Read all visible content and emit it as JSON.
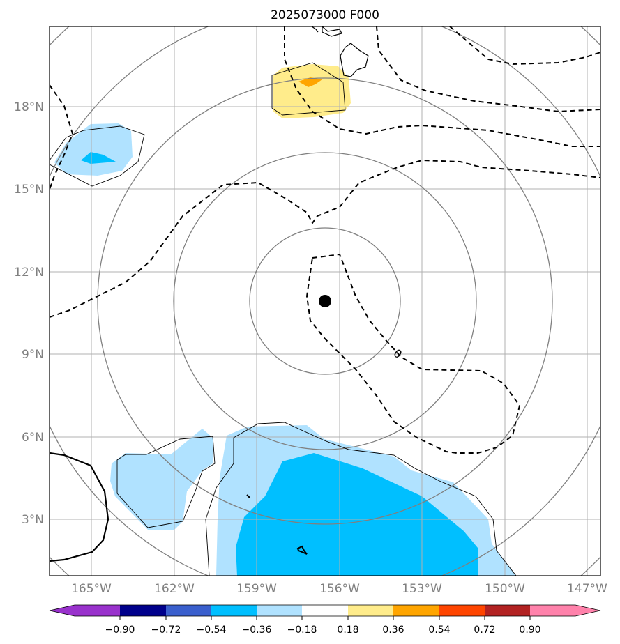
{
  "title": "2025073000 F000",
  "longitude_labels": [
    "165°W",
    "162°W",
    "159°W",
    "156°W",
    "153°W",
    "150°W",
    "147°W"
  ],
  "latitude_labels": [
    "18°N",
    "15°N",
    "12°N",
    "9°N",
    "6°N",
    "3°N"
  ],
  "contour_label": "0",
  "colorbar": {
    "tick_labels": [
      "−0.90",
      "−0.72",
      "−0.54",
      "−0.36",
      "−0.18",
      "0.18",
      "0.36",
      "0.54",
      "0.72",
      "0.90"
    ],
    "colors": [
      "#9932cc",
      "#00008b",
      "#3a5fcd",
      "#00bfff",
      "#b0e2ff",
      "#ffffff",
      "#ffec8b",
      "#ffa500",
      "#ff4500",
      "#b22222",
      "#ff82ab"
    ]
  },
  "colors": {
    "coast": "#000000",
    "grid": "#b0b0b0",
    "range_rings": "#808080",
    "light_blue": "#b0e2ff",
    "blue": "#00bfff",
    "yellow": "#ffec8b",
    "orange": "#ffa500"
  }
}
